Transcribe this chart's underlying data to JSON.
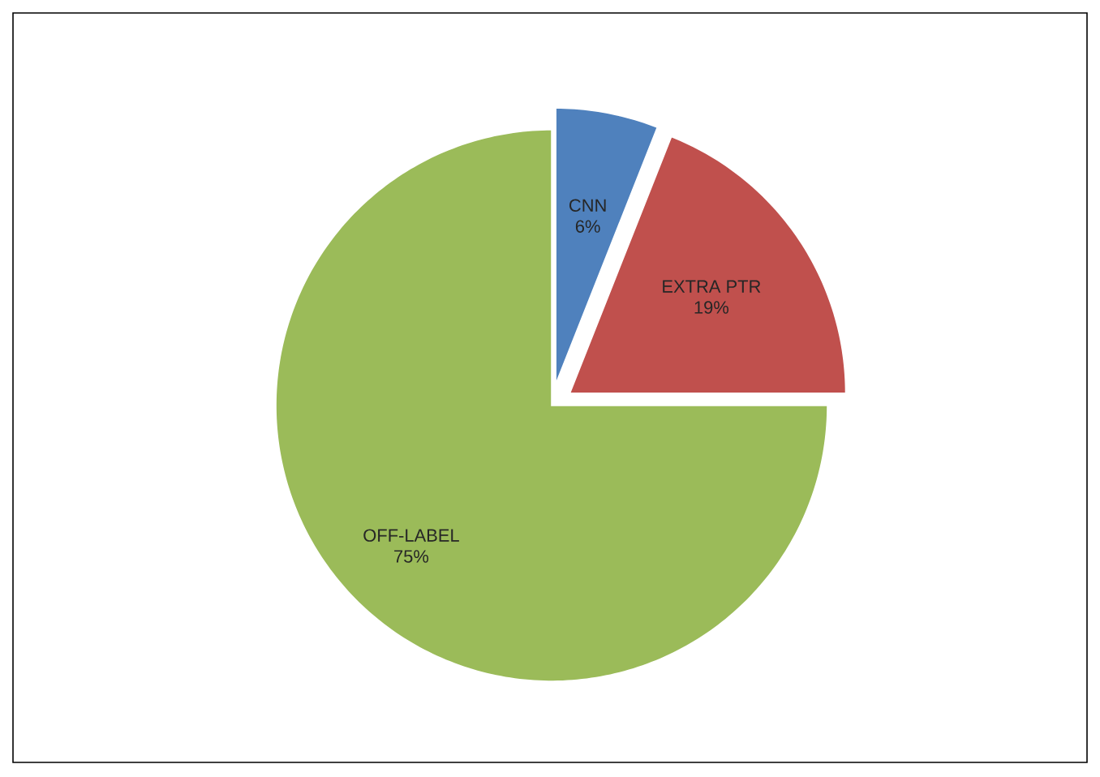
{
  "chart_data": {
    "type": "pie",
    "categories": [
      "CNN",
      "EXTRA PTR",
      "OFF-LABEL"
    ],
    "values": [
      6,
      19,
      75
    ],
    "value_labels": [
      "6%",
      "19%",
      "75%"
    ],
    "colors": [
      "#4f81bd",
      "#c0504d",
      "#9bbb59"
    ]
  }
}
